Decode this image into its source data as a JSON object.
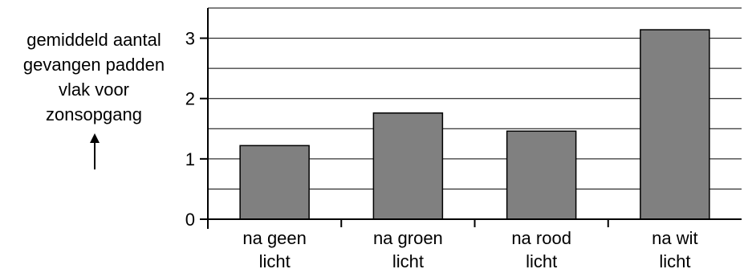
{
  "chart_data": {
    "type": "bar",
    "title": "",
    "xlabel": "",
    "ylabel_lines": [
      "gemiddeld aantal",
      "gevangen padden",
      "vlak voor",
      "zonsopgang"
    ],
    "ylabel_arrow": "↑",
    "categories": [
      [
        "na geen",
        "licht"
      ],
      [
        "na groen",
        "licht"
      ],
      [
        "na rood",
        "licht"
      ],
      [
        "na wit",
        "licht"
      ]
    ],
    "values": [
      1.22,
      1.76,
      1.46,
      3.14
    ],
    "ylim": [
      0,
      3.5
    ],
    "yticks": [
      0,
      1,
      2,
      3
    ],
    "ytick_labels": [
      "0",
      "1",
      "2",
      "3"
    ],
    "grid_step": 0.5,
    "grid": true,
    "bar_color": "#808080"
  }
}
